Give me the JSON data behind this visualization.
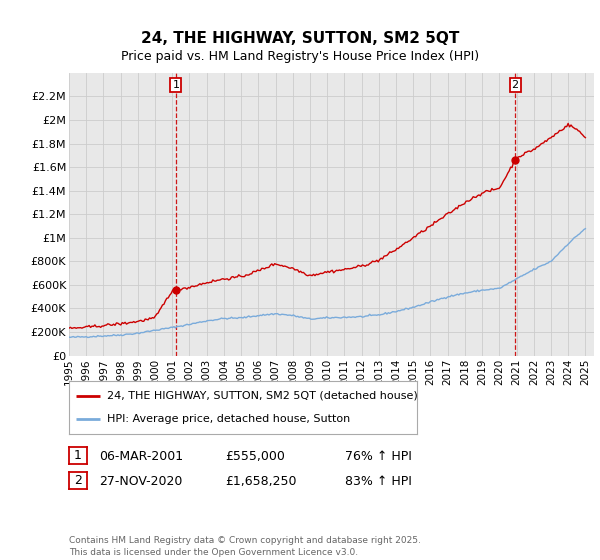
{
  "title": "24, THE HIGHWAY, SUTTON, SM2 5QT",
  "subtitle": "Price paid vs. HM Land Registry's House Price Index (HPI)",
  "legend_line1": "24, THE HIGHWAY, SUTTON, SM2 5QT (detached house)",
  "legend_line2": "HPI: Average price, detached house, Sutton",
  "annotation1_label": "1",
  "annotation1_date": "06-MAR-2001",
  "annotation1_price": "£555,000",
  "annotation1_pct": "76% ↑ HPI",
  "annotation2_label": "2",
  "annotation2_date": "27-NOV-2020",
  "annotation2_price": "£1,658,250",
  "annotation2_pct": "83% ↑ HPI",
  "footer": "Contains HM Land Registry data © Crown copyright and database right 2025.\nThis data is licensed under the Open Government Licence v3.0.",
  "red_color": "#cc0000",
  "blue_color": "#7aabdb",
  "vline_color": "#cc0000",
  "grid_color": "#cccccc",
  "bg_color": "#ffffff",
  "plot_bg_color": "#e8e8e8",
  "ylim_max": 2400000,
  "ylim_min": 0,
  "sale1_year": 2001.208,
  "sale1_price": 555000,
  "sale2_year": 2020.917,
  "sale2_price": 1658250
}
